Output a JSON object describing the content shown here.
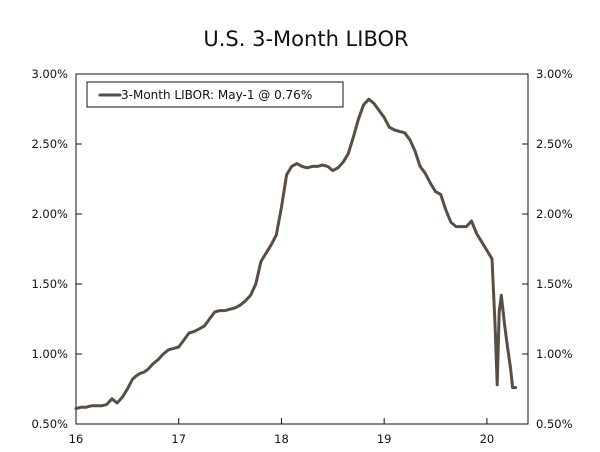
{
  "chart_data": {
    "type": "line",
    "title": "U.S. 3-Month LIBOR",
    "xlabel": "",
    "ylabel": "",
    "xlim": [
      16.0,
      20.4
    ],
    "ylim": [
      0.5,
      3.0
    ],
    "x_ticks": [
      16,
      17,
      18,
      19,
      20
    ],
    "x_tick_labels": [
      "16",
      "17",
      "18",
      "19",
      "20"
    ],
    "y_ticks": [
      0.5,
      1.0,
      1.5,
      2.0,
      2.5,
      3.0
    ],
    "y_tick_labels": [
      "0.50%",
      "1.00%",
      "1.50%",
      "2.00%",
      "2.50%",
      "3.00%"
    ],
    "right_axis_mirrored": true,
    "grid": false,
    "legend_position": "top-left",
    "colors": {
      "line": "#5a4e43",
      "axis": "#111111"
    },
    "series": [
      {
        "name": "3-Month LIBOR: May-1 @ 0.76%",
        "x": [
          16.0,
          16.05,
          16.1,
          16.15,
          16.2,
          16.25,
          16.3,
          16.35,
          16.4,
          16.45,
          16.5,
          16.55,
          16.58,
          16.62,
          16.66,
          16.7,
          16.75,
          16.8,
          16.85,
          16.9,
          16.95,
          17.0,
          17.05,
          17.1,
          17.15,
          17.2,
          17.25,
          17.3,
          17.35,
          17.4,
          17.45,
          17.5,
          17.55,
          17.6,
          17.65,
          17.7,
          17.75,
          17.8,
          17.85,
          17.9,
          17.95,
          18.0,
          18.05,
          18.1,
          18.15,
          18.2,
          18.25,
          18.3,
          18.35,
          18.4,
          18.45,
          18.5,
          18.55,
          18.6,
          18.65,
          18.7,
          18.75,
          18.8,
          18.85,
          18.9,
          18.95,
          19.0,
          19.05,
          19.1,
          19.15,
          19.2,
          19.25,
          19.3,
          19.35,
          19.4,
          19.45,
          19.5,
          19.55,
          19.6,
          19.65,
          19.7,
          19.75,
          19.8,
          19.85,
          19.9,
          19.95,
          20.0,
          20.05,
          20.08,
          20.1,
          20.12,
          20.14,
          20.17,
          20.2,
          20.23,
          20.25,
          20.28
        ],
        "values": [
          0.61,
          0.62,
          0.62,
          0.63,
          0.63,
          0.63,
          0.64,
          0.68,
          0.65,
          0.69,
          0.75,
          0.82,
          0.84,
          0.86,
          0.87,
          0.89,
          0.93,
          0.96,
          1.0,
          1.03,
          1.04,
          1.05,
          1.1,
          1.15,
          1.16,
          1.18,
          1.2,
          1.25,
          1.3,
          1.31,
          1.31,
          1.32,
          1.33,
          1.35,
          1.38,
          1.42,
          1.5,
          1.66,
          1.72,
          1.78,
          1.85,
          2.05,
          2.28,
          2.34,
          2.36,
          2.34,
          2.33,
          2.34,
          2.34,
          2.35,
          2.34,
          2.31,
          2.33,
          2.37,
          2.43,
          2.55,
          2.68,
          2.78,
          2.82,
          2.79,
          2.74,
          2.69,
          2.62,
          2.6,
          2.59,
          2.58,
          2.53,
          2.45,
          2.34,
          2.29,
          2.22,
          2.16,
          2.14,
          2.03,
          1.94,
          1.91,
          1.91,
          1.91,
          1.95,
          1.86,
          1.8,
          1.74,
          1.68,
          1.2,
          0.78,
          1.3,
          1.42,
          1.22,
          1.05,
          0.9,
          0.76,
          0.76
        ]
      }
    ]
  }
}
